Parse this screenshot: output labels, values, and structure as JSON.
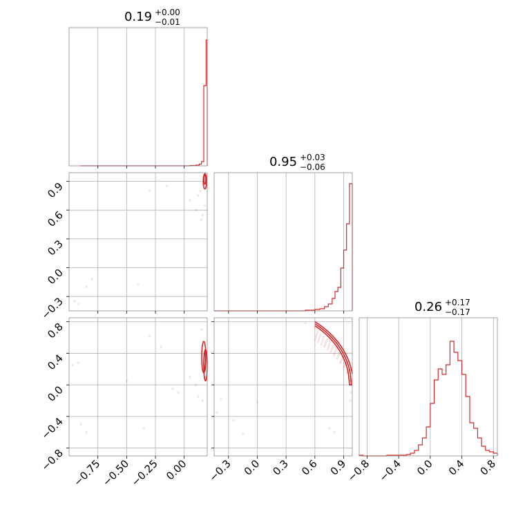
{
  "colors": {
    "accent": "#d62728",
    "grid": "#b0b0b0",
    "frame": "#888888"
  },
  "chart_data": {
    "type": "corner",
    "grid": true,
    "parameters": [
      {
        "title": "0.19",
        "plus": "+0.00",
        "minus": "−0.01",
        "range": [
          -1.0,
          0.2
        ],
        "ticks": [
          -0.75,
          -0.5,
          -0.25,
          0.0
        ],
        "tick_labels": [
          "−0.75",
          "−0.50",
          "−0.25",
          "0.00"
        ]
      },
      {
        "title": "0.95",
        "plus": "+0.03",
        "minus": "−0.06",
        "range": [
          -0.45,
          0.99
        ],
        "ticks": [
          -0.3,
          0.0,
          0.3,
          0.6,
          0.9
        ],
        "tick_labels": [
          "−0.3",
          "0.0",
          "0.3",
          "0.6",
          "0.9"
        ]
      },
      {
        "title": "0.26",
        "plus": "+0.17",
        "minus": "−0.17",
        "range": [
          -0.9,
          0.85
        ],
        "ticks": [
          -0.8,
          -0.4,
          0.0,
          0.4,
          0.8
        ],
        "tick_labels": [
          "−0.8",
          "−0.4",
          "0.0",
          "0.4",
          "0.8"
        ]
      }
    ],
    "histograms": [
      {
        "param": 0,
        "bins": [
          -0.9,
          -0.5,
          0.0,
          0.05,
          0.1,
          0.13,
          0.15,
          0.17,
          0.19,
          0.2
        ],
        "values": [
          0.0,
          0.0,
          0.0,
          0.002,
          0.005,
          0.012,
          0.03,
          0.58,
          0.91
        ]
      },
      {
        "param": 1,
        "bins": [
          -0.45,
          0.2,
          0.4,
          0.5,
          0.6,
          0.65,
          0.7,
          0.74,
          0.78,
          0.81,
          0.84,
          0.87,
          0.9,
          0.93,
          0.96,
          0.99
        ],
        "values": [
          0.0,
          0.0,
          0.0,
          0.005,
          0.01,
          0.015,
          0.03,
          0.05,
          0.09,
          0.14,
          0.17,
          0.31,
          0.44,
          0.63,
          0.92
        ]
      },
      {
        "param": 2,
        "bins": [
          -0.9,
          -0.85,
          -0.8,
          -0.75,
          -0.7,
          -0.65,
          -0.6,
          -0.55,
          -0.5,
          -0.45,
          -0.4,
          -0.35,
          -0.3,
          -0.25,
          -0.2,
          -0.15,
          -0.1,
          -0.05,
          0.0,
          0.05,
          0.1,
          0.15,
          0.2,
          0.25,
          0.3,
          0.35,
          0.4,
          0.45,
          0.5,
          0.55,
          0.6,
          0.65,
          0.7,
          0.75,
          0.8,
          0.85
        ],
        "values": [
          0.005,
          0.0,
          0.0,
          0.0,
          0.0,
          0.0,
          0.0,
          0.005,
          0.005,
          0.005,
          0.005,
          0.005,
          0.01,
          0.02,
          0.04,
          0.08,
          0.13,
          0.21,
          0.38,
          0.55,
          0.63,
          0.59,
          0.66,
          0.83,
          0.75,
          0.69,
          0.59,
          0.43,
          0.24,
          0.2,
          0.13,
          0.07,
          0.04,
          0.03,
          0.02
        ]
      }
    ],
    "scatter": [
      {
        "x_param": 0,
        "y_param": 1,
        "points": [
          [
            -0.95,
            -0.35
          ],
          [
            -0.92,
            -0.38
          ],
          [
            -0.85,
            -0.2
          ],
          [
            -0.8,
            -0.12
          ],
          [
            -0.4,
            -0.17
          ],
          [
            -0.3,
            0.8
          ],
          [
            -0.15,
            0.85
          ],
          [
            0.05,
            0.7
          ],
          [
            0.1,
            0.6
          ],
          [
            0.12,
            0.75
          ],
          [
            0.15,
            0.5
          ],
          [
            0.16,
            0.55
          ],
          [
            0.17,
            0.9
          ],
          [
            0.18,
            0.65
          ],
          [
            0.14,
            0.8
          ]
        ]
      },
      {
        "x_param": 0,
        "y_param": 2,
        "points": [
          [
            -0.97,
            0.25
          ],
          [
            -0.92,
            0.28
          ],
          [
            -0.85,
            -0.6
          ],
          [
            -0.9,
            -0.5
          ],
          [
            -0.5,
            0.05
          ],
          [
            -0.3,
            0.62
          ],
          [
            -0.2,
            0.48
          ],
          [
            -0.1,
            -0.05
          ],
          [
            -0.05,
            -0.1
          ],
          [
            -0.35,
            -0.55
          ],
          [
            0.05,
            0.1
          ],
          [
            0.1,
            0.0
          ],
          [
            0.12,
            -0.15
          ],
          [
            0.15,
            0.7
          ],
          [
            0.16,
            -0.2
          ],
          [
            0.17,
            0.55
          ]
        ]
      },
      {
        "x_param": 1,
        "y_param": 2,
        "points": [
          [
            -0.42,
            -0.35
          ],
          [
            -0.38,
            -0.18
          ],
          [
            -0.25,
            -0.45
          ],
          [
            -0.15,
            -0.62
          ],
          [
            0.0,
            -0.22
          ],
          [
            0.5,
            0.78
          ],
          [
            0.6,
            0.72
          ],
          [
            0.75,
            -0.55
          ],
          [
            0.8,
            -0.6
          ],
          [
            0.85,
            0.55
          ],
          [
            0.9,
            0.4
          ],
          [
            0.93,
            0.3
          ],
          [
            0.96,
            0.1
          ],
          [
            0.98,
            -0.1
          ],
          [
            0.97,
            -0.2
          ]
        ]
      }
    ],
    "contours": [
      {
        "x_param": 0,
        "y_param": 1,
        "levels": [
          {
            "cx": 0.18,
            "cy": 0.9,
            "rx": 0.015,
            "ry": 0.08
          },
          {
            "cx": 0.18,
            "cy": 0.92,
            "rx": 0.008,
            "ry": 0.05
          }
        ]
      },
      {
        "x_param": 0,
        "y_param": 2,
        "levels": [
          {
            "cx": 0.17,
            "cy": 0.35,
            "rx": 0.018,
            "ry": 0.2
          },
          {
            "cx": 0.185,
            "cy": 0.25,
            "rx": 0.015,
            "ry": 0.2
          },
          {
            "cx": 0.18,
            "cy": 0.3,
            "rx": 0.007,
            "ry": 0.12
          }
        ]
      }
    ],
    "ridge": {
      "x_param": 1,
      "y_param": 2,
      "radius": 1.0,
      "x_from": 0.6,
      "x_to": 0.99
    }
  }
}
